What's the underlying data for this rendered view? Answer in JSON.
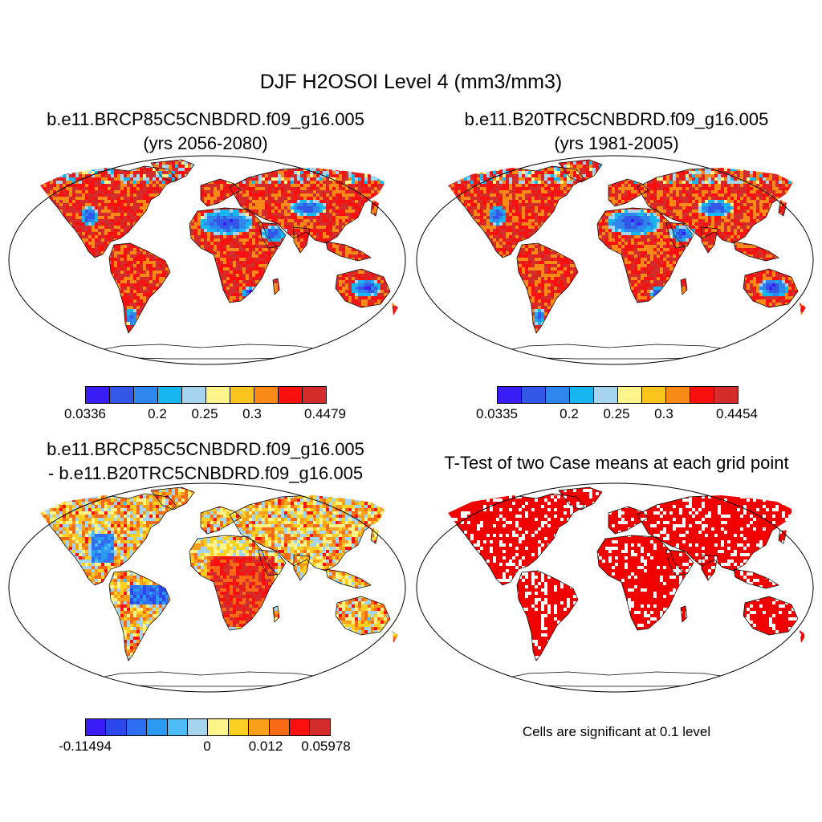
{
  "figure": {
    "title": "DJF H2OSOI Level 4 (mm3/mm3)"
  },
  "panels": [
    {
      "id": "case1",
      "title_line1": "b.e11.BRCP85C5CNBDRD.f09_g16.005",
      "title_line2": "(yrs 2056-2080)",
      "colorbar": {
        "colors": [
          "#3a1cf5",
          "#3358e8",
          "#2f86ec",
          "#18b6ef",
          "#a6d3ee",
          "#fdf48c",
          "#fbc51e",
          "#f98a18",
          "#fb1010",
          "#d42b2b"
        ],
        "tick_labels": [
          "0.0336",
          "0.2",
          "0.25",
          "0.3",
          "0.4479"
        ]
      }
    },
    {
      "id": "case2",
      "title_line1": "b.e11.B20TRC5CNBDRD.f09_g16.005",
      "title_line2": "(yrs 1981-2005)",
      "colorbar": {
        "colors": [
          "#3a1cf5",
          "#3358e8",
          "#2f86ec",
          "#18b6ef",
          "#a6d3ee",
          "#fdf48c",
          "#fbc51e",
          "#f98a18",
          "#fb1010",
          "#d42b2b"
        ],
        "tick_labels": [
          "0.0335",
          "0.2",
          "0.25",
          "0.3",
          "0.4454"
        ]
      }
    },
    {
      "id": "diff",
      "title_line1": "b.e11.BRCP85C5CNBDRD.f09_g16.005",
      "title_line2": "- b.e11.B20TRC5CNBDRD.f09_g16.005",
      "colorbar": {
        "colors": [
          "#3a1cf5",
          "#2c48ea",
          "#2f6ef0",
          "#2b98f1",
          "#4cbcf5",
          "#a6d3ee",
          "#fdf48c",
          "#fbd022",
          "#f9a01a",
          "#f96a16",
          "#fb1010",
          "#d42b2b"
        ],
        "tick_labels": [
          "-0.11494",
          "0",
          "0.012",
          "0.05978"
        ]
      }
    },
    {
      "id": "ttest",
      "title_line1": "T-Test of two Case means at each grid point",
      "note": "Cells are significant at 0.1 level"
    }
  ]
}
